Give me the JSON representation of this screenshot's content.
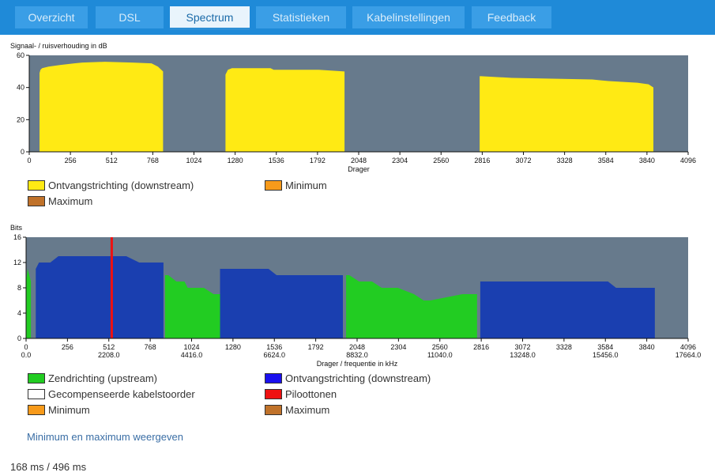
{
  "tabs": [
    {
      "label": "Overzicht",
      "active": false
    },
    {
      "label": "DSL",
      "active": false
    },
    {
      "label": "Spectrum",
      "active": true
    },
    {
      "label": "Statistieken",
      "active": false
    },
    {
      "label": "Kabelinstellingen",
      "active": false
    },
    {
      "label": "Feedback",
      "active": false
    }
  ],
  "colors": {
    "tabbar": "#1f8ad8",
    "plot_bg": "#677a8c",
    "snr": "#ffea14",
    "upstream": "#22cc22",
    "downstream": "#1a3fb0",
    "pilot": "#ee1111",
    "minimum": "#f79a1a",
    "maximum": "#c0722a",
    "crosstalk": "#ffffff"
  },
  "chart_data": [
    {
      "type": "area",
      "title": "",
      "ylabel": "Signaal- / ruisverhouding in dB",
      "xlabel": "Drager",
      "xlim": [
        0,
        4096
      ],
      "ylim": [
        0,
        60
      ],
      "x_ticks": [
        "0",
        "256",
        "512",
        "768",
        "1024",
        "1280",
        "1536",
        "1792",
        "2048",
        "2304",
        "2560",
        "2816",
        "3072",
        "3328",
        "3584",
        "3840",
        "4096"
      ],
      "y_ticks": [
        "0",
        "20",
        "40",
        "60"
      ],
      "series": [
        {
          "name": "Ontvangstrichting (downstream)",
          "color_key": "snr",
          "segments": [
            {
              "x": [
                64,
                70,
                80,
                120,
                190,
                280,
                330,
                470,
                640,
                760,
                800,
                832
              ],
              "y": [
                49,
                51,
                52,
                53,
                54,
                55,
                55.5,
                56,
                55.5,
                55,
                53,
                50
              ]
            },
            {
              "x": [
                1220,
                1235,
                1260,
                1500,
                1520,
                1800,
                1960
              ],
              "y": [
                48,
                51,
                52,
                52,
                51,
                51,
                50
              ]
            },
            {
              "x": [
                2800,
                2810,
                3000,
                3500,
                3600,
                3780,
                3850,
                3880
              ],
              "y": [
                47,
                47,
                46,
                45,
                44,
                43,
                42,
                40
              ]
            }
          ]
        }
      ],
      "legend": [
        {
          "label": "Ontvangstrichting (downstream)",
          "color_key": "snr"
        },
        {
          "label": "Minimum",
          "color_key": "minimum"
        },
        {
          "label": "Maximum",
          "color_key": "maximum"
        }
      ]
    },
    {
      "type": "area",
      "title": "",
      "ylabel": "Bits",
      "xlabel": "Drager / frequentie in kHz",
      "xlim": [
        0,
        4096
      ],
      "ylim": [
        0,
        16
      ],
      "x_ticks": [
        "0",
        "256",
        "512",
        "768",
        "1024",
        "1280",
        "1536",
        "1792",
        "2048",
        "2304",
        "2560",
        "2816",
        "3072",
        "3328",
        "3584",
        "3840",
        "4096"
      ],
      "x_ticks_khz": [
        "0.0",
        "2208.0",
        "4416.0",
        "6624.0",
        "8832.0",
        "11040.0",
        "13248.0",
        "15456.0",
        "17664.0"
      ],
      "y_ticks": [
        "0",
        "4",
        "8",
        "12",
        "16"
      ],
      "series": [
        {
          "name": "Zendrichting (upstream)",
          "color_key": "upstream",
          "segments": [
            {
              "x": [
                0,
                10,
                20,
                30
              ],
              "y": [
                9,
                11,
                10,
                9
              ]
            },
            {
              "x": [
                860,
                880,
                930,
                980,
                1000,
                1060,
                1100,
                1160,
                1200
              ],
              "y": [
                10,
                10,
                9,
                9,
                8,
                8,
                8,
                7,
                7
              ]
            },
            {
              "x": [
                1980,
                2000,
                2060,
                2140,
                2200,
                2300,
                2400,
                2460,
                2500,
                2700,
                2790
              ],
              "y": [
                10,
                10,
                9,
                9,
                8,
                8,
                7,
                6,
                6,
                7,
                7
              ]
            }
          ]
        },
        {
          "name": "Ontvangstrichting (downstream)",
          "color_key": "downstream",
          "segments": [
            {
              "x": [
                60,
                80,
                150,
                200,
                300,
                400,
                470,
                520,
                560,
                620,
                700,
                800,
                850
              ],
              "y": [
                11,
                12,
                12,
                13,
                13,
                13,
                13,
                13,
                13,
                13,
                12,
                12,
                12
              ]
            },
            {
              "x": [
                1200,
                1220,
                1500,
                1550,
                1800,
                1960
              ],
              "y": [
                11,
                11,
                11,
                10,
                10,
                10
              ]
            },
            {
              "x": [
                2810,
                2830,
                3000,
                3100,
                3300,
                3600,
                3650,
                3800,
                3850,
                3890
              ],
              "y": [
                9,
                9,
                9,
                9,
                9,
                9,
                8,
                8,
                8,
                8
              ]
            }
          ]
        },
        {
          "name": "Piloottonen",
          "color_key": "pilot",
          "x": [
            530
          ]
        }
      ],
      "legend": [
        {
          "label": "Zendrichting (upstream)",
          "color_key": "upstream"
        },
        {
          "label": "Ontvangstrichting (downstream)",
          "color_key": "downstream"
        },
        {
          "label": "Gecompenseerde kabelstoorder",
          "color_key": "crosstalk"
        },
        {
          "label": "Piloottonen",
          "color_key": "pilot"
        },
        {
          "label": "Minimum",
          "color_key": "minimum"
        },
        {
          "label": "Maximum",
          "color_key": "maximum"
        }
      ]
    }
  ],
  "link_label": "Minimum en maximum weergeven",
  "timing": "168 ms / 496 ms"
}
